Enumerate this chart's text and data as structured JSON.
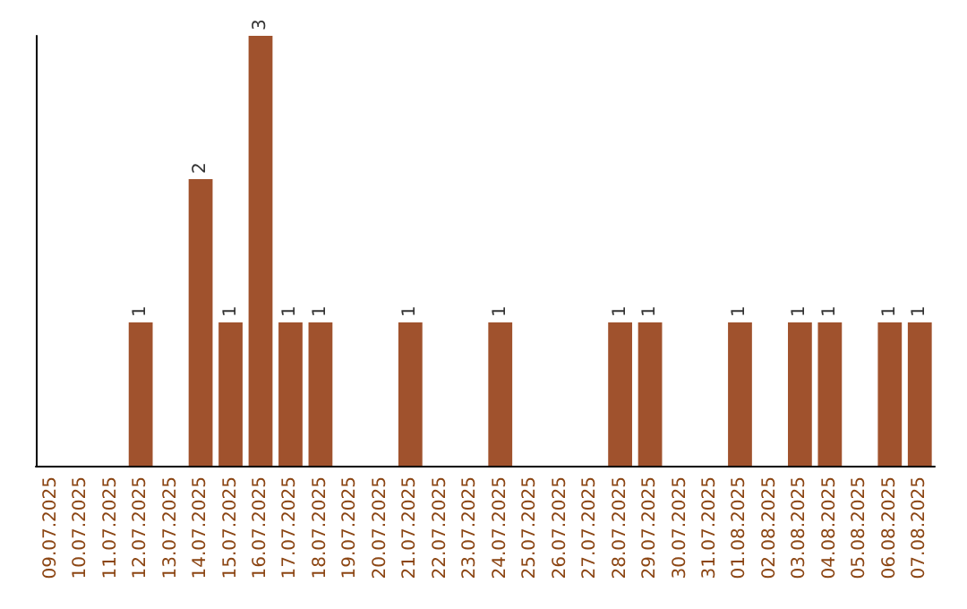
{
  "chart_data": {
    "type": "bar",
    "categories": [
      "09.07.2025",
      "10.07.2025",
      "11.07.2025",
      "12.07.2025",
      "13.07.2025",
      "14.07.2025",
      "15.07.2025",
      "16.07.2025",
      "17.07.2025",
      "18.07.2025",
      "19.07.2025",
      "20.07.2025",
      "21.07.2025",
      "22.07.2025",
      "23.07.2025",
      "24.07.2025",
      "25.07.2025",
      "26.07.2025",
      "27.07.2025",
      "28.07.2025",
      "29.07.2025",
      "30.07.2025",
      "31.07.2025",
      "01.08.2025",
      "02.08.2025",
      "03.08.2025",
      "04.08.2025",
      "05.08.2025",
      "06.08.2025",
      "07.08.2025"
    ],
    "values": [
      null,
      null,
      null,
      1,
      null,
      2,
      1,
      3,
      1,
      1,
      null,
      null,
      1,
      null,
      null,
      1,
      null,
      null,
      null,
      1,
      1,
      null,
      null,
      1,
      null,
      1,
      1,
      null,
      1,
      1
    ],
    "color": "#a0522d",
    "data_labels": true
  }
}
